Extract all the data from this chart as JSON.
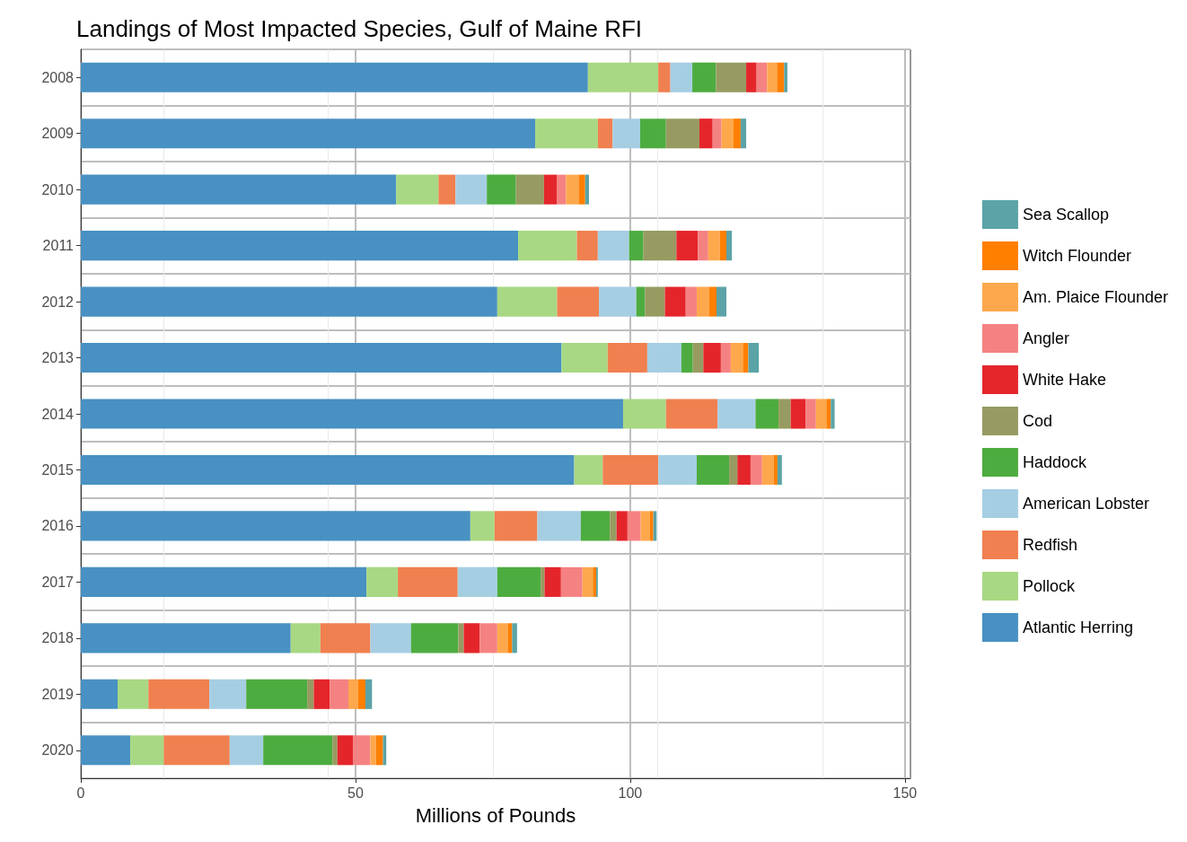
{
  "chart_data": {
    "type": "bar",
    "orientation": "horizontal",
    "stacked": true,
    "title": "Landings of Most Impacted Species, Gulf of Maine RFI",
    "xlabel": "Millions of Pounds",
    "categories": [
      "2008",
      "2009",
      "2010",
      "2011",
      "2012",
      "2013",
      "2014",
      "2015",
      "2016",
      "2017",
      "2018",
      "2019",
      "2020"
    ],
    "xlim": [
      0,
      151
    ],
    "xticks": [
      0,
      50,
      100,
      150
    ],
    "grid": true,
    "legend": "right",
    "series": [
      {
        "name": "Atlantic Herring",
        "color": "#4891c2",
        "values": [
          92.3,
          82.7,
          57.4,
          79.6,
          75.8,
          87.5,
          98.7,
          89.8,
          70.9,
          52.0,
          38.2,
          6.7,
          9.0
        ]
      },
      {
        "name": "Pollock",
        "color": "#a8d883",
        "values": [
          12.8,
          11.4,
          7.7,
          10.7,
          10.9,
          8.4,
          7.8,
          5.2,
          4.4,
          5.7,
          5.4,
          5.6,
          6.1
        ]
      },
      {
        "name": "Redfish",
        "color": "#f08050",
        "values": [
          2.2,
          2.7,
          3.1,
          3.8,
          7.6,
          7.2,
          9.4,
          10.1,
          7.8,
          10.9,
          9.1,
          11.1,
          12.0
        ]
      },
      {
        "name": "American Lobster",
        "color": "#a6cee3",
        "values": [
          4.0,
          5.0,
          5.7,
          5.7,
          6.8,
          6.2,
          6.9,
          7.0,
          7.9,
          7.2,
          7.4,
          6.7,
          6.1
        ]
      },
      {
        "name": "Haddock",
        "color": "#4dac3f",
        "values": [
          4.3,
          4.7,
          5.3,
          2.6,
          1.6,
          2.1,
          4.2,
          5.9,
          5.3,
          7.9,
          8.6,
          11.1,
          12.6
        ]
      },
      {
        "name": "Cod",
        "color": "#979b62",
        "values": [
          5.5,
          6.1,
          5.1,
          6.0,
          3.6,
          1.9,
          2.2,
          1.5,
          1.2,
          0.7,
          1.0,
          1.2,
          0.9
        ]
      },
      {
        "name": "White Hake",
        "color": "#e4262b",
        "values": [
          1.9,
          2.4,
          2.4,
          3.9,
          3.8,
          3.2,
          2.7,
          2.4,
          2.0,
          3.0,
          2.9,
          2.9,
          2.9
        ]
      },
      {
        "name": "Angler",
        "color": "#f58282",
        "values": [
          1.9,
          1.6,
          1.6,
          1.9,
          2.0,
          1.8,
          1.9,
          2.1,
          2.4,
          3.9,
          3.2,
          3.4,
          3.1
        ]
      },
      {
        "name": "Am. Plaice Flounder",
        "color": "#fea84d",
        "values": [
          1.8,
          2.2,
          2.4,
          2.1,
          2.3,
          2.2,
          1.9,
          2.1,
          1.7,
          1.9,
          1.9,
          1.8,
          1.0
        ]
      },
      {
        "name": "Witch Flounder",
        "color": "#ff7f00",
        "values": [
          1.3,
          1.3,
          1.1,
          1.2,
          1.3,
          1.0,
          0.8,
          0.7,
          0.6,
          0.6,
          0.8,
          1.3,
          1.3
        ]
      },
      {
        "name": "Sea Scallop",
        "color": "#5ba3a6",
        "values": [
          0.6,
          1.0,
          0.7,
          1.0,
          1.8,
          1.9,
          0.7,
          0.8,
          0.6,
          0.3,
          0.9,
          1.2,
          0.6
        ]
      }
    ]
  }
}
